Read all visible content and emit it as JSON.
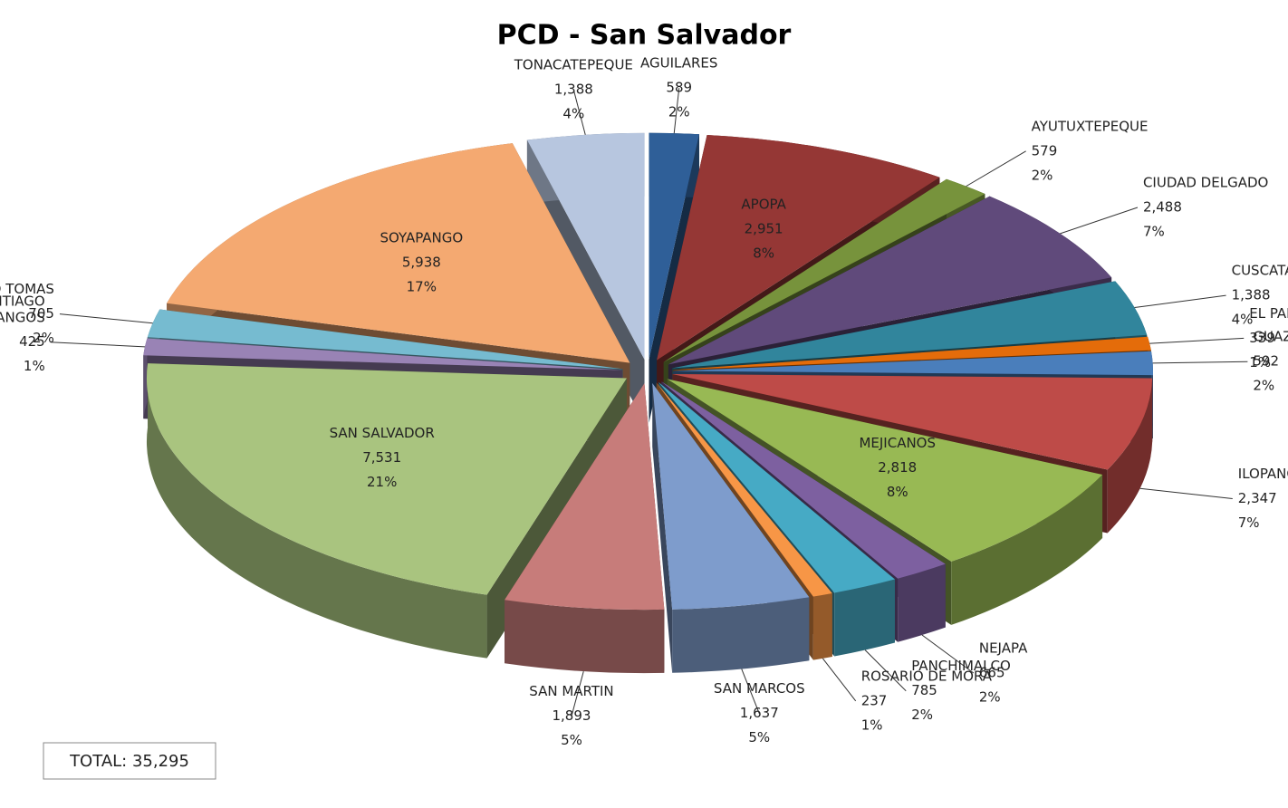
{
  "chart_data": {
    "type": "pie3d",
    "title": "PCD - San Salvador",
    "categories": [
      "AGUILARES",
      "APOPA",
      "AYUTUXTEPEQUE",
      "CIUDAD DELGADO",
      "CUSCATANCINGO",
      "EL PAISNAL",
      "GUAZAPA",
      "ILOPANGO",
      "MEJICANOS",
      "NEJAPA",
      "PANCHIMALCO",
      "ROSARIO DE MORA",
      "SAN MARCOS",
      "SAN MARTIN",
      "SAN SALVADOR",
      "SANTIAGO\nTEXACUANGOS",
      "SANTO TOMAS",
      "SOYAPANGO",
      "TONACATEPEQUE"
    ],
    "values": [
      589,
      2951,
      579,
      2488,
      1388,
      339,
      592,
      2347,
      2818,
      665,
      785,
      237,
      1637,
      1893,
      7531,
      425,
      705,
      5938,
      1388
    ],
    "value_labels": [
      "589",
      "2,951",
      "579",
      "2,488",
      "1,388",
      "339",
      "592",
      "2,347",
      "2,818",
      "665",
      "785",
      "237",
      "1,637",
      "1,893",
      "7,531",
      "425",
      "705",
      "5,938",
      "1,388"
    ],
    "percents": [
      2,
      8,
      2,
      7,
      4,
      1,
      2,
      7,
      8,
      2,
      2,
      1,
      5,
      5,
      21,
      1,
      2,
      17,
      4
    ],
    "percent_labels": [
      "2%",
      "8%",
      "2%",
      "7%",
      "4%",
      "1%",
      "2%",
      "7%",
      "8%",
      "2%",
      "2%",
      "1%",
      "5%",
      "5%",
      "21%",
      "1%",
      "2%",
      "17%",
      "4%"
    ],
    "colors": [
      "#2f5f98",
      "#953735",
      "#77933c",
      "#604a7b",
      "#31859c",
      "#e46c0a",
      "#4a7ebb",
      "#be4b48",
      "#98b954",
      "#7d60a0",
      "#46aac5",
      "#f79646",
      "#7e9ccc",
      "#c77c7a",
      "#a9c47f",
      "#9983b5",
      "#76bbd0",
      "#f4a971",
      "#b7c6df"
    ],
    "annotation": "TOTAL: 35,295"
  }
}
